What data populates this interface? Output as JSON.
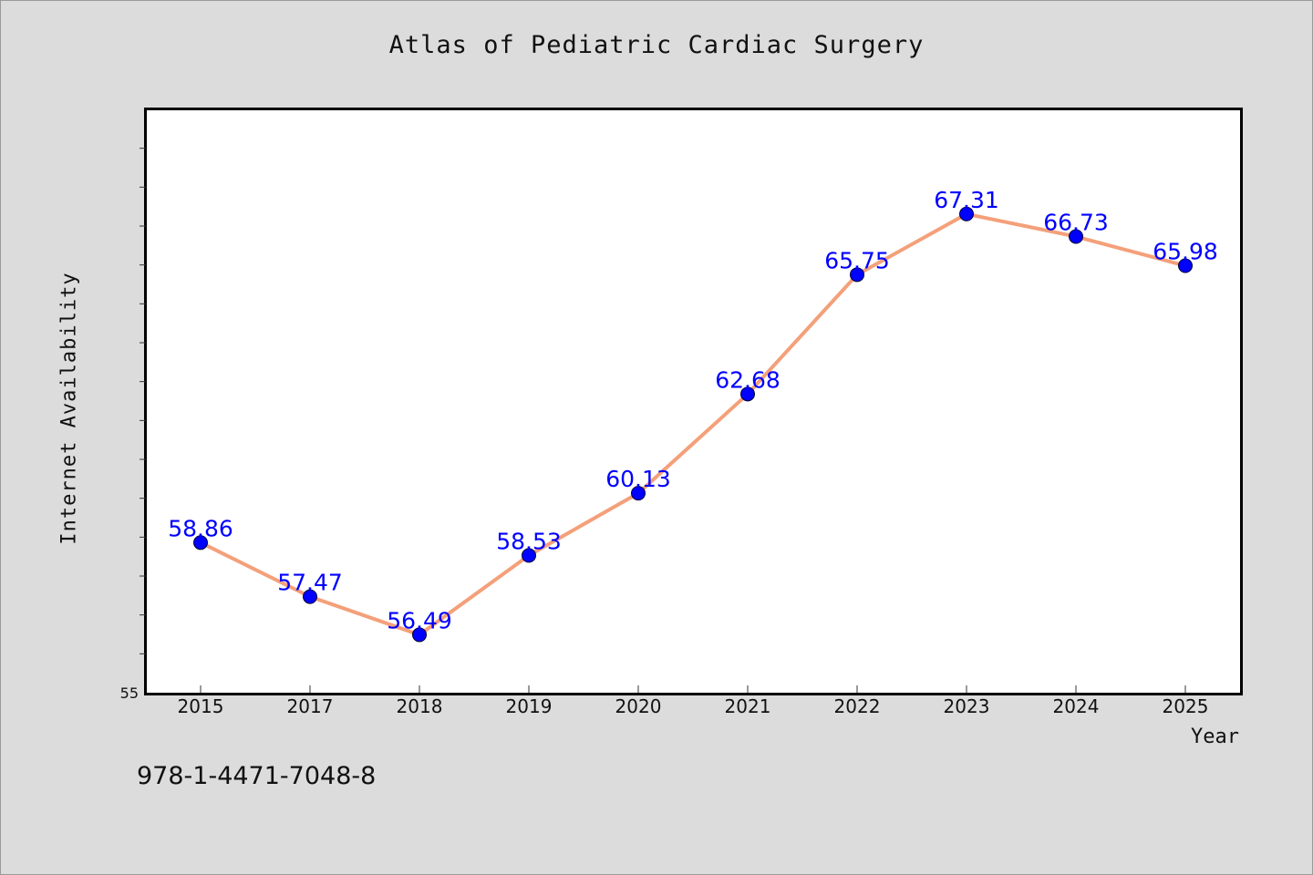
{
  "chart_data": {
    "type": "line",
    "title": "Atlas of Pediatric Cardiac Surgery",
    "xlabel": "Year",
    "ylabel": "Internet Availability",
    "categories": [
      "2015",
      "2017",
      "2018",
      "2019",
      "2020",
      "2021",
      "2022",
      "2023",
      "2024",
      "2025"
    ],
    "series": [
      {
        "values": [
          58.86,
          57.47,
          56.49,
          58.53,
          60.13,
          62.68,
          65.75,
          67.31,
          66.73,
          65.98
        ],
        "data_labels": [
          "58.86",
          "57.47",
          "56.49",
          "58.53",
          "60.13",
          "62.68",
          "65.75",
          "67.31",
          "66.73",
          "65.98"
        ]
      }
    ],
    "ylim": [
      55,
      70
    ],
    "y_tick_labels": [
      "55"
    ],
    "grid": false,
    "line_color": "#f4a07a",
    "marker_color": "#0000ff",
    "label_color": "#0000ff"
  },
  "footer_text": "978-1-4471-7048-8"
}
